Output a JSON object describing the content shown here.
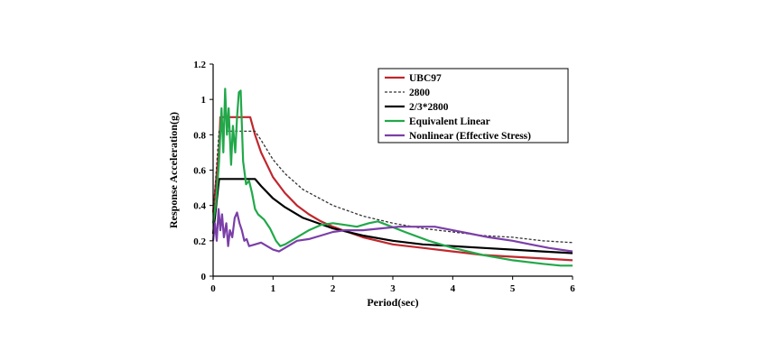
{
  "chart_data": {
    "type": "line",
    "title": "",
    "xlabel": "Period(sec)",
    "ylabel": "Response Acceleration(g)",
    "xlim": [
      0,
      6
    ],
    "ylim": [
      0,
      1.2
    ],
    "xticks": [
      "0",
      "1",
      "2",
      "3",
      "4",
      "5",
      "6"
    ],
    "yticks": [
      "0",
      "0.2",
      "0.4",
      "0.6",
      "0.8",
      "1",
      "1.2"
    ],
    "grid": false,
    "legend_position": "top-right",
    "series": [
      {
        "name": "UBC97",
        "color": "#c0272d",
        "style": "solid",
        "points": [
          [
            0,
            0.36
          ],
          [
            0.1,
            0.72
          ],
          [
            0.12,
            0.9
          ],
          [
            0.62,
            0.9
          ],
          [
            0.7,
            0.8
          ],
          [
            0.8,
            0.7
          ],
          [
            1.0,
            0.56
          ],
          [
            1.2,
            0.47
          ],
          [
            1.4,
            0.4
          ],
          [
            1.6,
            0.35
          ],
          [
            1.8,
            0.31
          ],
          [
            2.0,
            0.28
          ],
          [
            2.5,
            0.22
          ],
          [
            3.0,
            0.18
          ],
          [
            3.5,
            0.16
          ],
          [
            4.0,
            0.14
          ],
          [
            4.5,
            0.12
          ],
          [
            5.0,
            0.11
          ],
          [
            5.5,
            0.1
          ],
          [
            6.0,
            0.09
          ]
        ]
      },
      {
        "name": "2800",
        "color": "#333333",
        "style": "dashed",
        "points": [
          [
            0,
            0.35
          ],
          [
            0.1,
            0.82
          ],
          [
            0.7,
            0.82
          ],
          [
            0.8,
            0.77
          ],
          [
            1.0,
            0.66
          ],
          [
            1.2,
            0.58
          ],
          [
            1.5,
            0.49
          ],
          [
            2.0,
            0.4
          ],
          [
            2.5,
            0.34
          ],
          [
            3.0,
            0.3
          ],
          [
            3.5,
            0.27
          ],
          [
            4.0,
            0.25
          ],
          [
            4.5,
            0.23
          ],
          [
            5.0,
            0.22
          ],
          [
            5.5,
            0.2
          ],
          [
            6.0,
            0.19
          ]
        ]
      },
      {
        "name": "2/3*2800",
        "color": "#000000",
        "style": "solid",
        "points": [
          [
            0,
            0.24
          ],
          [
            0.1,
            0.55
          ],
          [
            0.7,
            0.55
          ],
          [
            0.8,
            0.51
          ],
          [
            1.0,
            0.44
          ],
          [
            1.2,
            0.39
          ],
          [
            1.5,
            0.33
          ],
          [
            2.0,
            0.27
          ],
          [
            2.5,
            0.23
          ],
          [
            3.0,
            0.2
          ],
          [
            3.5,
            0.18
          ],
          [
            4.0,
            0.17
          ],
          [
            4.5,
            0.16
          ],
          [
            5.0,
            0.15
          ],
          [
            5.5,
            0.14
          ],
          [
            6.0,
            0.13
          ]
        ]
      },
      {
        "name": "Equivalent Linear",
        "color": "#22a84a",
        "style": "solid",
        "points": [
          [
            0,
            0.3
          ],
          [
            0.05,
            0.42
          ],
          [
            0.1,
            0.65
          ],
          [
            0.14,
            0.95
          ],
          [
            0.17,
            0.7
          ],
          [
            0.2,
            1.06
          ],
          [
            0.23,
            0.8
          ],
          [
            0.26,
            0.95
          ],
          [
            0.3,
            0.63
          ],
          [
            0.33,
            0.85
          ],
          [
            0.37,
            0.7
          ],
          [
            0.4,
            0.9
          ],
          [
            0.43,
            1.04
          ],
          [
            0.46,
            1.05
          ],
          [
            0.5,
            0.65
          ],
          [
            0.55,
            0.52
          ],
          [
            0.6,
            0.54
          ],
          [
            0.65,
            0.47
          ],
          [
            0.7,
            0.38
          ],
          [
            0.75,
            0.35
          ],
          [
            0.85,
            0.32
          ],
          [
            0.95,
            0.27
          ],
          [
            1.05,
            0.2
          ],
          [
            1.12,
            0.17
          ],
          [
            1.2,
            0.18
          ],
          [
            1.4,
            0.22
          ],
          [
            1.6,
            0.26
          ],
          [
            1.8,
            0.29
          ],
          [
            2.0,
            0.3
          ],
          [
            2.2,
            0.29
          ],
          [
            2.4,
            0.28
          ],
          [
            2.6,
            0.3
          ],
          [
            2.75,
            0.31
          ],
          [
            2.9,
            0.29
          ],
          [
            3.2,
            0.25
          ],
          [
            3.6,
            0.2
          ],
          [
            4.0,
            0.16
          ],
          [
            4.5,
            0.12
          ],
          [
            5.0,
            0.09
          ],
          [
            5.5,
            0.07
          ],
          [
            5.8,
            0.06
          ],
          [
            6.0,
            0.06
          ]
        ]
      },
      {
        "name": "Nonlinear (Effective Stress)",
        "color": "#7b3fa8",
        "style": "solid",
        "points": [
          [
            0,
            0.2
          ],
          [
            0.03,
            0.3
          ],
          [
            0.06,
            0.2
          ],
          [
            0.09,
            0.38
          ],
          [
            0.12,
            0.26
          ],
          [
            0.15,
            0.35
          ],
          [
            0.18,
            0.22
          ],
          [
            0.22,
            0.3
          ],
          [
            0.25,
            0.17
          ],
          [
            0.28,
            0.26
          ],
          [
            0.32,
            0.22
          ],
          [
            0.36,
            0.33
          ],
          [
            0.4,
            0.36
          ],
          [
            0.44,
            0.3
          ],
          [
            0.48,
            0.26
          ],
          [
            0.52,
            0.2
          ],
          [
            0.56,
            0.21
          ],
          [
            0.6,
            0.17
          ],
          [
            0.7,
            0.18
          ],
          [
            0.8,
            0.19
          ],
          [
            0.9,
            0.17
          ],
          [
            1.0,
            0.15
          ],
          [
            1.1,
            0.14
          ],
          [
            1.2,
            0.16
          ],
          [
            1.4,
            0.2
          ],
          [
            1.6,
            0.21
          ],
          [
            1.8,
            0.23
          ],
          [
            2.0,
            0.25
          ],
          [
            2.2,
            0.26
          ],
          [
            2.5,
            0.26
          ],
          [
            2.8,
            0.27
          ],
          [
            3.1,
            0.28
          ],
          [
            3.4,
            0.28
          ],
          [
            3.7,
            0.28
          ],
          [
            4.0,
            0.26
          ],
          [
            4.3,
            0.24
          ],
          [
            4.6,
            0.22
          ],
          [
            5.0,
            0.2
          ],
          [
            5.3,
            0.18
          ],
          [
            5.6,
            0.16
          ],
          [
            6.0,
            0.14
          ]
        ]
      }
    ]
  }
}
